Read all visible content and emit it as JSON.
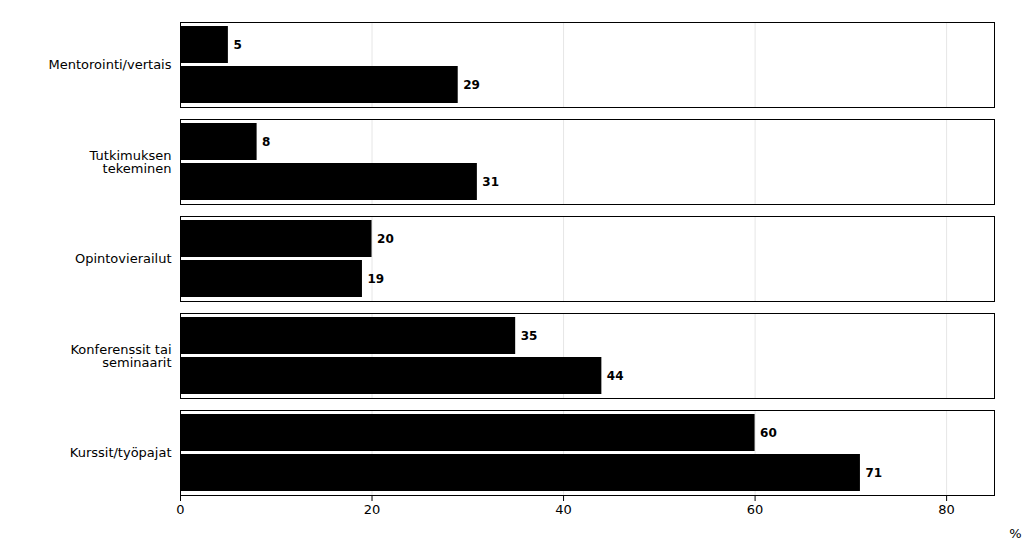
{
  "chart_data": {
    "type": "bar",
    "orientation": "horizontal",
    "categories": [
      "Kurssit/työpajat",
      "Konferenssit tai\nseminaarit",
      "Opintovierailut",
      "Tutkimuksen\ntekeminen",
      "Mentorointi/vertais"
    ],
    "series": [
      {
        "values": [
          60,
          35,
          20,
          8,
          5
        ]
      },
      {
        "values": [
          71,
          44,
          19,
          31,
          29
        ]
      }
    ],
    "xlim": [
      0,
      85
    ],
    "xticks": [
      0,
      20,
      40,
      60,
      80
    ],
    "xlabel": "%",
    "grid": true,
    "data_labels": true
  }
}
